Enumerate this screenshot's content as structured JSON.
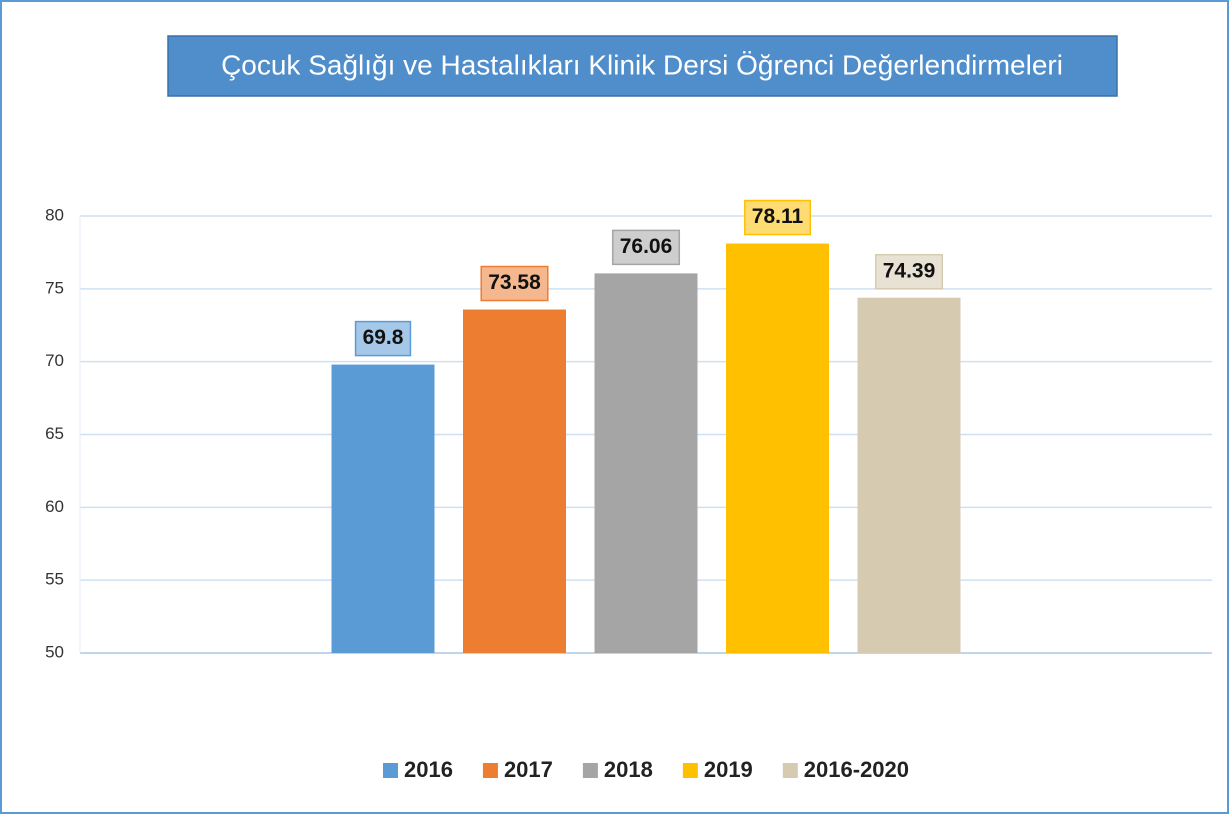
{
  "chart_data": {
    "type": "bar",
    "title": "Çocuk Sağlığı ve Hastalıkları Klinik Dersi Öğrenci Değerlendirmeleri",
    "series": [
      {
        "name": "2016",
        "color": "#5b9bd5",
        "values": [
          69.8
        ]
      },
      {
        "name": "2017",
        "color": "#ed7d31",
        "values": [
          73.58
        ]
      },
      {
        "name": "2018",
        "color": "#a5a5a5",
        "values": [
          76.06
        ]
      },
      {
        "name": "2019",
        "color": "#ffc000",
        "values": [
          78.11
        ]
      },
      {
        "name": "2016-2020",
        "color": "#d6cbb1",
        "values": [
          74.39
        ]
      }
    ],
    "ylim": [
      50,
      80
    ],
    "yticks": [
      50,
      55,
      60,
      65,
      70,
      75,
      80
    ],
    "grid": true,
    "legend": "bottom"
  }
}
